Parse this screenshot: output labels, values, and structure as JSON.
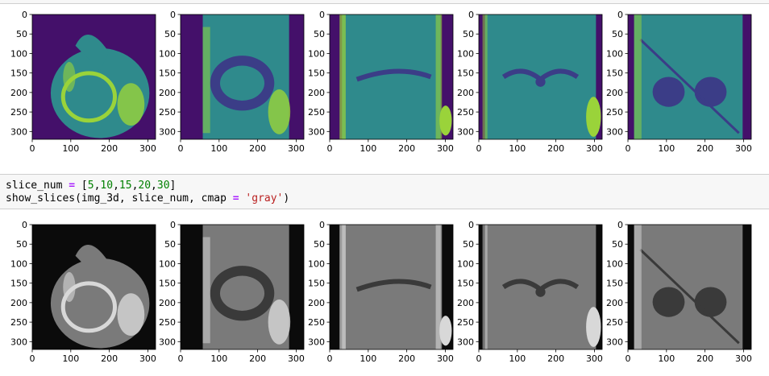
{
  "code_cell": {
    "line1": {
      "var": "slice_num ",
      "op": "=",
      "open": " [",
      "nums": [
        "5",
        "10",
        "15",
        "20",
        "30"
      ],
      "close": "]"
    },
    "line2": {
      "pre": "show_slices(img_3d, slice_num, cmap ",
      "op": "=",
      "mid": " ",
      "str": "'gray'",
      "close": ")"
    }
  },
  "axes": {
    "x_ticks": [
      "0",
      "100",
      "200",
      "300"
    ],
    "y_ticks": [
      "0",
      "50",
      "100",
      "150",
      "200",
      "250",
      "300"
    ]
  },
  "rows": [
    {
      "colormap": "viridis",
      "colors": {
        "background": "#44106a",
        "tissue": "#2f8a8c",
        "bright": "#9ad33a",
        "dark": "#3b3d87"
      }
    },
    {
      "colormap": "gray",
      "colors": {
        "background": "#0b0b0b",
        "tissue": "#7a7a7a",
        "bright": "#d8d8d8",
        "dark": "#3a3a3a"
      }
    }
  ],
  "slices": [
    {
      "kind": "sagittal-edge"
    },
    {
      "kind": "sagittal-mid"
    },
    {
      "kind": "coronal-front"
    },
    {
      "kind": "coronal-center"
    },
    {
      "kind": "coronal-back"
    }
  ]
}
